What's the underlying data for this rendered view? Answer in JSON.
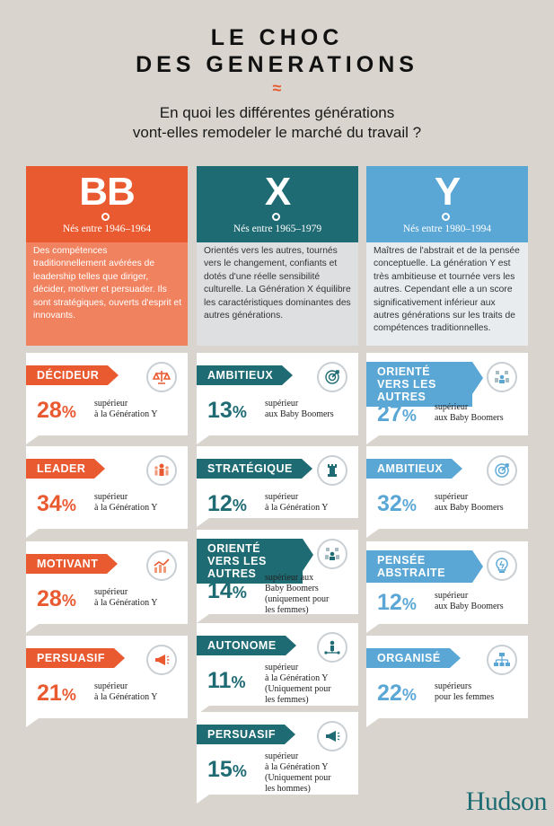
{
  "title": {
    "line1": "LE CHOC",
    "line2": "DES GENERATIONS",
    "ornament": "≈"
  },
  "subtitle": {
    "line1": "En quoi les différentes générations",
    "line2": "vont-elles remodeler le marché du travail ?"
  },
  "colors": {
    "bb": "#e95a30",
    "x": "#1f6b73",
    "y": "#5aa7d6"
  },
  "columns": [
    {
      "letter": "BB",
      "born": "Nés entre 1946–1964",
      "description": "Des compétences traditionnellement avérées de leadership telles que diriger, décider, motiver et persuader. Ils sont stratégiques, ouverts d'esprit et innovants.",
      "cards": [
        {
          "label": "DÉCIDEUR",
          "value": "28",
          "sign": "%",
          "note": [
            "supérieur",
            "à la Génération Y"
          ],
          "icon": "balance-icon"
        },
        {
          "label": "LEADER",
          "value": "34",
          "sign": "%",
          "note": [
            "supérieur",
            "à la Génération Y"
          ],
          "icon": "leader-people-icon"
        },
        {
          "label": "MOTIVANT",
          "value": "28",
          "sign": "%",
          "note": [
            "supérieur",
            "à la Génération Y"
          ],
          "icon": "growth-chart-icon"
        },
        {
          "label": "PERSUASIF",
          "value": "21",
          "sign": "%",
          "note": [
            "supérieur",
            "à la Génération Y"
          ],
          "icon": "megaphone-icon"
        }
      ]
    },
    {
      "letter": "X",
      "born": "Nés entre 1965–1979",
      "description": "Orientés vers les autres, tournés vers le changement, confiants et dotés d'une réelle sensibilité culturelle. La Génération X équilibre les caractéristiques dominantes des autres générations.",
      "cards": [
        {
          "label": "AMBITIEUX",
          "value": "13",
          "sign": "%",
          "note": [
            "supérieur",
            "aux Baby Boomers"
          ],
          "icon": "target-icon"
        },
        {
          "label": "STRATÉGIQUE",
          "value": "12",
          "sign": "%",
          "note": [
            "supérieur",
            "à la Génération Y"
          ],
          "icon": "chess-rook-icon"
        },
        {
          "label": "ORIENTÉ VERS LES AUTRES",
          "value": "14",
          "sign": "%",
          "note": [
            "supérieur aux",
            "Baby Boomers",
            "(uniquement pour",
            "les femmes)"
          ],
          "icon": "group-icon"
        },
        {
          "label": "AUTONOME",
          "value": "11",
          "sign": "%",
          "note": [
            "supérieur",
            "à la Génération Y",
            "(Uniquement pour",
            "les femmes)"
          ],
          "icon": "network-person-icon"
        },
        {
          "label": "PERSUASIF",
          "value": "15",
          "sign": "%",
          "note": [
            "supérieur",
            "à la Génération Y",
            "(Uniquement pour",
            "les hommes)"
          ],
          "icon": "megaphone-icon"
        }
      ]
    },
    {
      "letter": "Y",
      "born": "Nés entre 1980–1994",
      "description": "Maîtres de l'abstrait et de la pensée conceptuelle. La génération Y est très ambitieuse et tournée vers les autres. Cependant elle a un score significativement inférieur aux autres générations sur les traits de compétences traditionnelles.",
      "cards": [
        {
          "label": "ORIENTÉ VERS LES AUTRES",
          "value": "27",
          "sign": "%",
          "note": [
            "supérieur",
            "aux Baby Boomers"
          ],
          "icon": "group-icon"
        },
        {
          "label": "AMBITIEUX",
          "value": "32",
          "sign": "%",
          "note": [
            "supérieur",
            "aux Baby Boomers"
          ],
          "icon": "target-icon"
        },
        {
          "label": "PENSÉE ABSTRAITE",
          "value": "12",
          "sign": "%",
          "note": [
            "supérieur",
            "aux Baby Boomers"
          ],
          "icon": "lightbulb-icon"
        },
        {
          "label": "ORGANISÉ",
          "value": "22",
          "sign": "%",
          "note": [
            "supérieurs",
            "pour les femmes"
          ],
          "icon": "org-chart-icon"
        }
      ]
    }
  ],
  "logo": "Hudson"
}
